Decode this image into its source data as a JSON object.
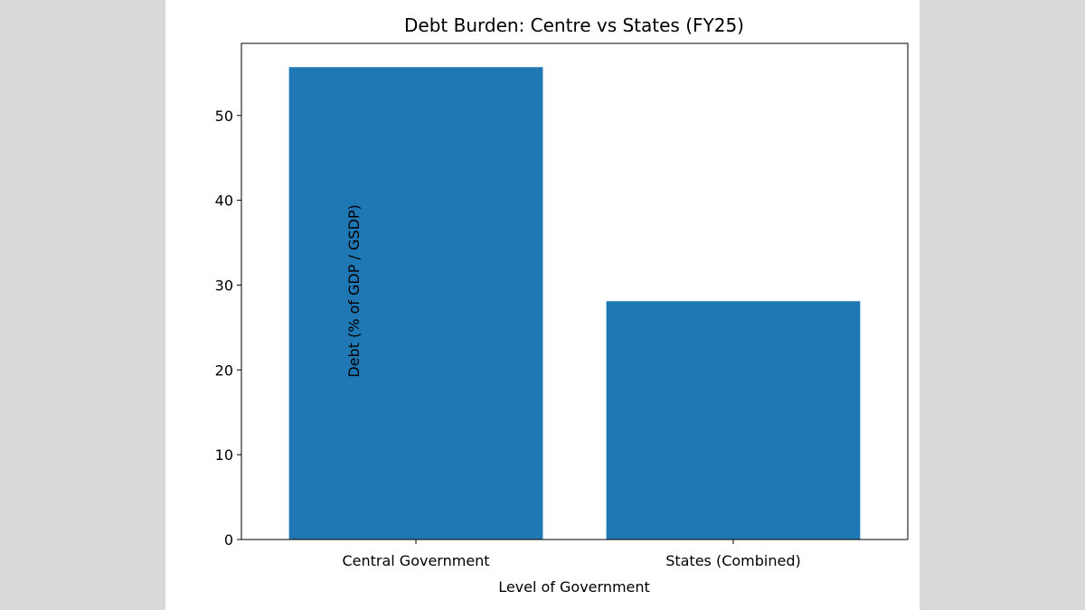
{
  "chart_data": {
    "type": "bar",
    "title": "Debt Burden: Centre vs States (FY25)",
    "xlabel": "Level of Government",
    "ylabel": "Debt (% of GDP / GSDP)",
    "categories": [
      "Central Government",
      "States (Combined)"
    ],
    "values": [
      55.7,
      28.1
    ],
    "ylim": [
      0,
      58.5
    ],
    "yticks": [
      0,
      10,
      20,
      30,
      40,
      50
    ],
    "bar_color": "#1f77b4",
    "grid": false,
    "legend": "none"
  }
}
